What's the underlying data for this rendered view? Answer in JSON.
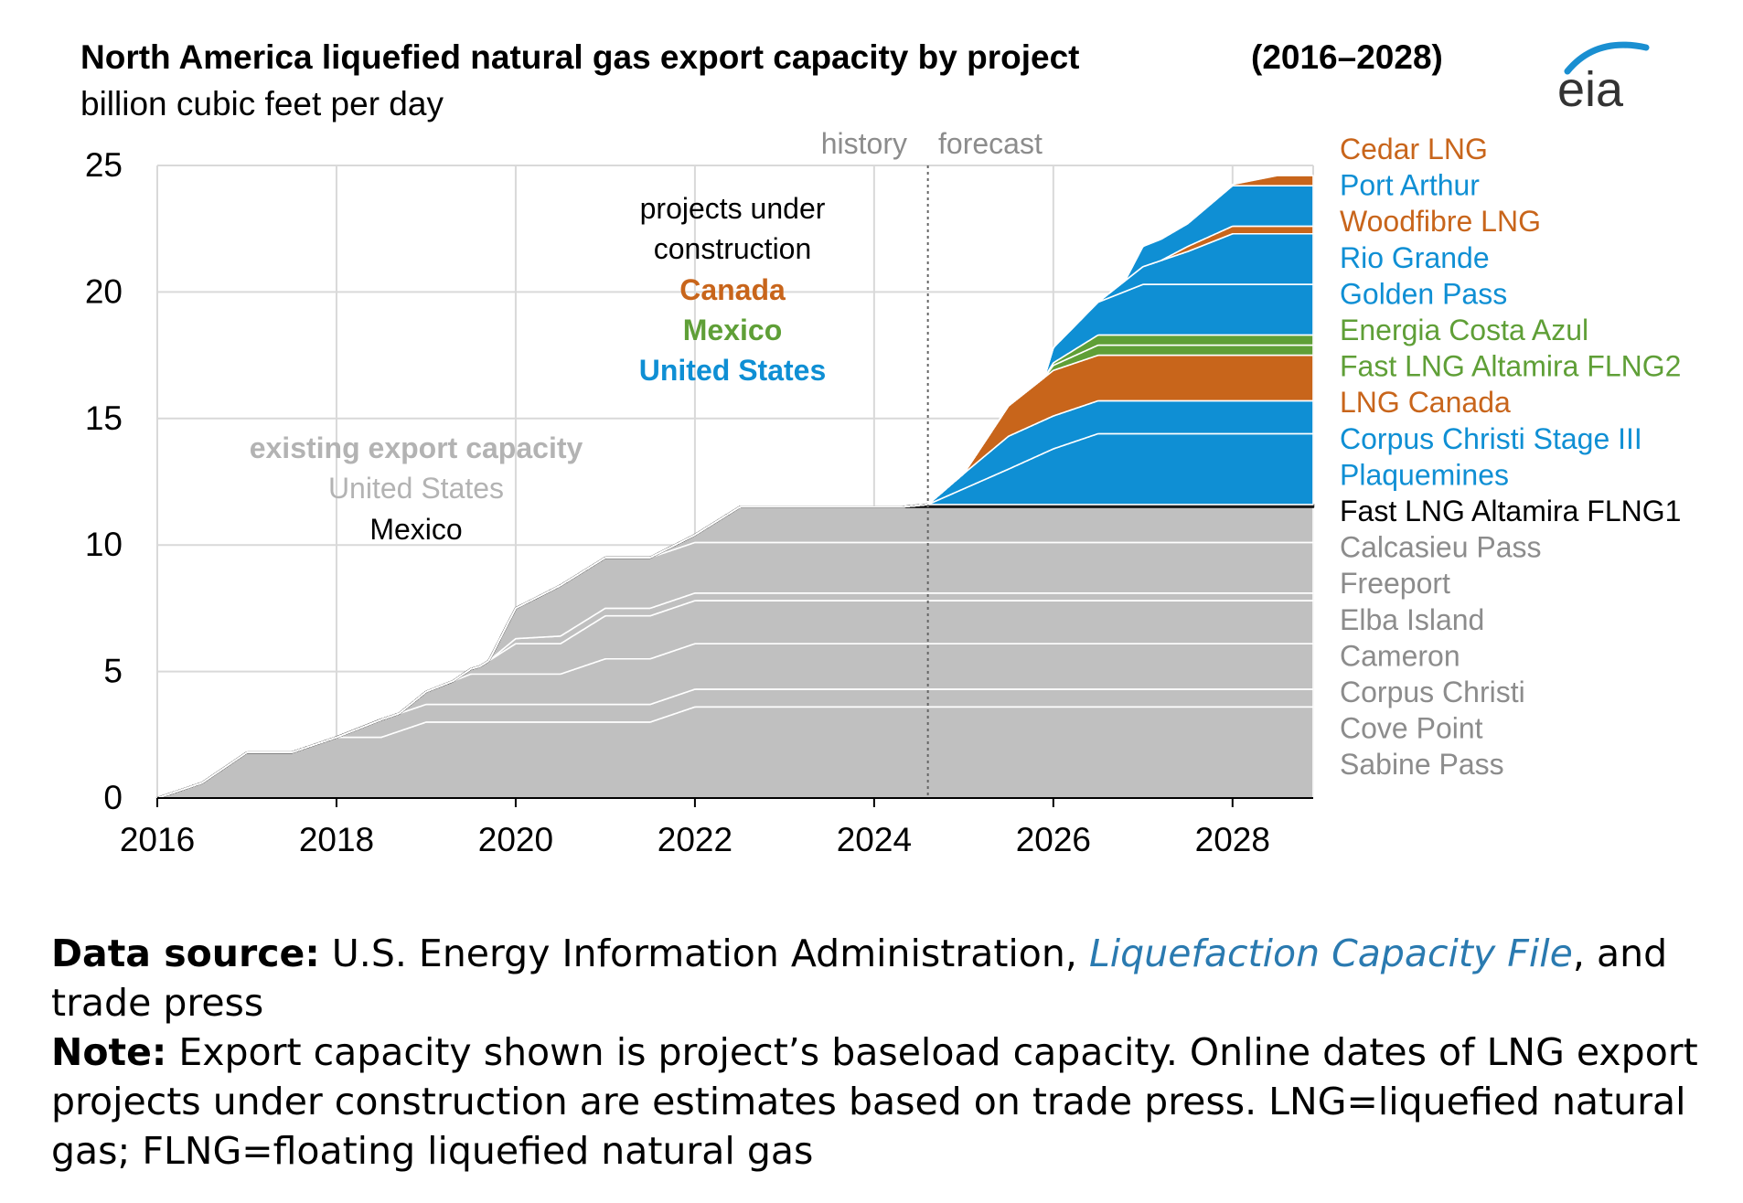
{
  "header": {
    "title": "North America liquefied natural gas export capacity by project",
    "title_years": "(2016–2028)",
    "units": "billion cubic feet per day",
    "logo_text": "eia"
  },
  "annotations": {
    "history": "history",
    "forecast": "forecast",
    "construction_line1": "projects under",
    "construction_line2": "construction",
    "canada": "Canada",
    "mexico": "Mexico",
    "united_states": "United States",
    "existing": "existing export capacity",
    "existing_us": "United States",
    "existing_mexico": "Mexico"
  },
  "colors": {
    "existing": "#c0c0c0",
    "us": "#0f8fd4",
    "canada": "#c8651b",
    "mexico": "#5f9f37",
    "grid": "#d9d9d9",
    "legend_gray": "#8c8c8c"
  },
  "footnote": {
    "source_label": "Data source:",
    "source_text": "U.S. Energy Information Administration,",
    "source_link": "Liquefaction Capacity File",
    "source_tail": ", and trade press",
    "note_label": "Note:",
    "note_text": "Export capacity shown is project’s baseload capacity. Online dates of LNG export projects under construction are estimates based on trade press. LNG=liquefied natural gas; FLNG=floating liquefied natural gas"
  },
  "chart_data": {
    "type": "area",
    "stacked": true,
    "title": "North America liquefied natural gas export capacity by project (2016–2028)",
    "ylabel": "billion cubic feet per day",
    "xlim": [
      2016,
      2028.9
    ],
    "ylim": [
      0,
      25
    ],
    "xticks": [
      "2016",
      "2018",
      "2020",
      "2022",
      "2024",
      "2026",
      "2028"
    ],
    "yticks": [
      "0",
      "5",
      "10",
      "15",
      "20",
      "25"
    ],
    "history_forecast_split": 2024.6,
    "legend_order_top_to_bottom": [
      "Cedar LNG",
      "Port Arthur",
      "Woodfibre LNG",
      "Rio Grande",
      "Golden Pass",
      "Energia Costa Azul",
      "Fast LNG Altamira FLNG2",
      "LNG Canada",
      "Corpus Christi Stage III",
      "Plaquemines",
      "Fast LNG Altamira FLNG1",
      "Calcasieu Pass",
      "Freeport",
      "Elba Island",
      "Cameron",
      "Corpus Christi",
      "Cove Point",
      "Sabine Pass"
    ],
    "series": [
      {
        "name": "Sabine Pass",
        "group": "existing",
        "points": [
          [
            2016,
            0
          ],
          [
            2016.5,
            0.6
          ],
          [
            2017,
            1.8
          ],
          [
            2017.5,
            1.8
          ],
          [
            2018,
            2.4
          ],
          [
            2018.5,
            2.4
          ],
          [
            2019,
            3.0
          ],
          [
            2021.5,
            3.0
          ],
          [
            2022,
            3.6
          ],
          [
            2028.9,
            3.6
          ]
        ]
      },
      {
        "name": "Cove Point",
        "group": "existing",
        "points": [
          [
            2016,
            0
          ],
          [
            2018,
            0
          ],
          [
            2018.5,
            0.7
          ],
          [
            2019,
            0.7
          ],
          [
            2021.5,
            0.7
          ],
          [
            2022,
            0.7
          ],
          [
            2028.9,
            0.7
          ]
        ]
      },
      {
        "name": "Corpus Christi",
        "group": "existing",
        "points": [
          [
            2016,
            0
          ],
          [
            2018.7,
            0
          ],
          [
            2019,
            0.5
          ],
          [
            2019.5,
            1.2
          ],
          [
            2020,
            1.2
          ],
          [
            2020.5,
            1.2
          ],
          [
            2021,
            1.8
          ],
          [
            2021.5,
            1.8
          ],
          [
            2022,
            1.8
          ],
          [
            2028.9,
            1.8
          ]
        ]
      },
      {
        "name": "Cameron",
        "group": "existing",
        "points": [
          [
            2016,
            0
          ],
          [
            2019.3,
            0
          ],
          [
            2019.6,
            0.3
          ],
          [
            2020,
            1.2
          ],
          [
            2020.5,
            1.2
          ],
          [
            2021,
            1.7
          ],
          [
            2021.5,
            1.7
          ],
          [
            2022,
            1.7
          ],
          [
            2028.9,
            1.7
          ]
        ]
      },
      {
        "name": "Elba Island",
        "group": "existing",
        "points": [
          [
            2016,
            0
          ],
          [
            2019.7,
            0
          ],
          [
            2020,
            0.2
          ],
          [
            2020.5,
            0.3
          ],
          [
            2021,
            0.3
          ],
          [
            2021.5,
            0.3
          ],
          [
            2022,
            0.3
          ],
          [
            2028.9,
            0.3
          ]
        ]
      },
      {
        "name": "Freeport",
        "group": "existing",
        "points": [
          [
            2016,
            0
          ],
          [
            2019.7,
            0
          ],
          [
            2020,
            1.2
          ],
          [
            2020.5,
            2.0
          ],
          [
            2021,
            2.0
          ],
          [
            2021.5,
            2.0
          ],
          [
            2022,
            2.0
          ],
          [
            2028.9,
            2.0
          ]
        ]
      },
      {
        "name": "Calcasieu Pass",
        "group": "existing",
        "points": [
          [
            2016,
            0
          ],
          [
            2021.5,
            0
          ],
          [
            2022,
            0.3
          ],
          [
            2022.5,
            1.4
          ],
          [
            2028.9,
            1.4
          ]
        ]
      },
      {
        "name": "Fast LNG Altamira FLNG1",
        "group": "mexico_existing",
        "points": [
          [
            2016,
            0
          ],
          [
            2024.3,
            0
          ],
          [
            2024.6,
            0.1
          ],
          [
            2028.9,
            0.1
          ]
        ]
      },
      {
        "name": "Plaquemines",
        "group": "us",
        "points": [
          [
            2016,
            0
          ],
          [
            2024.6,
            0
          ],
          [
            2025.5,
            1.4
          ],
          [
            2026,
            2.2
          ],
          [
            2026.5,
            2.8
          ],
          [
            2028.9,
            2.8
          ]
        ]
      },
      {
        "name": "Corpus Christi Stage III",
        "group": "us",
        "points": [
          [
            2016,
            0
          ],
          [
            2024.6,
            0
          ],
          [
            2025,
            0.6
          ],
          [
            2025.5,
            1.3
          ],
          [
            2026,
            1.3
          ],
          [
            2028.9,
            1.3
          ]
        ]
      },
      {
        "name": "LNG Canada",
        "group": "canada",
        "points": [
          [
            2016,
            0
          ],
          [
            2025,
            0
          ],
          [
            2025.5,
            1.2
          ],
          [
            2026,
            1.8
          ],
          [
            2028.9,
            1.8
          ]
        ]
      },
      {
        "name": "Fast LNG Altamira FLNG2",
        "group": "mexico",
        "points": [
          [
            2016,
            0
          ],
          [
            2025.9,
            0
          ],
          [
            2026,
            0.2
          ],
          [
            2026.5,
            0.4
          ],
          [
            2028.9,
            0.4
          ]
        ]
      },
      {
        "name": "Energia Costa Azul",
        "group": "mexico",
        "points": [
          [
            2016,
            0
          ],
          [
            2025.9,
            0
          ],
          [
            2026,
            0.1
          ],
          [
            2026.5,
            0.4
          ],
          [
            2028.9,
            0.4
          ]
        ]
      },
      {
        "name": "Golden Pass",
        "group": "us",
        "points": [
          [
            2016,
            0
          ],
          [
            2025.9,
            0
          ],
          [
            2026,
            0.6
          ],
          [
            2026.5,
            1.3
          ],
          [
            2027,
            2.0
          ],
          [
            2028.9,
            2.0
          ]
        ]
      },
      {
        "name": "Rio Grande",
        "group": "us",
        "points": [
          [
            2016,
            0
          ],
          [
            2026.5,
            0
          ],
          [
            2027,
            0.7
          ],
          [
            2027.5,
            1.3
          ],
          [
            2028,
            2.0
          ],
          [
            2028.9,
            2.0
          ]
        ]
      },
      {
        "name": "Woodfibre LNG",
        "group": "canada",
        "points": [
          [
            2016,
            0
          ],
          [
            2027.2,
            0
          ],
          [
            2027.5,
            0.2
          ],
          [
            2028,
            0.3
          ],
          [
            2028.9,
            0.3
          ]
        ]
      },
      {
        "name": "Port Arthur",
        "group": "us",
        "points": [
          [
            2016,
            0
          ],
          [
            2026.8,
            0
          ],
          [
            2027,
            0.8
          ],
          [
            2027.5,
            0.9
          ],
          [
            2028,
            1.6
          ],
          [
            2028.9,
            1.6
          ]
        ]
      },
      {
        "name": "Cedar LNG",
        "group": "canada",
        "points": [
          [
            2016,
            0
          ],
          [
            2027.9,
            0
          ],
          [
            2028,
            0.05
          ],
          [
            2028.5,
            0.4
          ],
          [
            2028.9,
            0.4
          ]
        ]
      }
    ]
  }
}
